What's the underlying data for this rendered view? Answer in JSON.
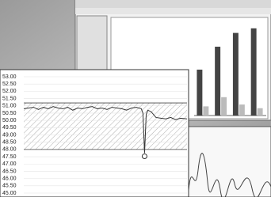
{
  "chart_data": [
    {
      "type": "line",
      "x": [
        0,
        3,
        6,
        9,
        12,
        15,
        18,
        21,
        24,
        27,
        30,
        33,
        36,
        39,
        42,
        45,
        48,
        51,
        54,
        57,
        60,
        63,
        66,
        69,
        72,
        73,
        74,
        75,
        76,
        78,
        81,
        84,
        87,
        90,
        93,
        96,
        100
      ],
      "values": [
        50.8,
        50.85,
        50.9,
        50.75,
        50.9,
        50.8,
        50.95,
        50.85,
        50.8,
        50.9,
        50.7,
        50.85,
        50.8,
        50.9,
        50.95,
        50.8,
        50.85,
        50.75,
        50.9,
        50.85,
        50.8,
        50.7,
        50.85,
        50.9,
        50.8,
        50.5,
        47.75,
        50.4,
        50.7,
        50.6,
        50.2,
        50.15,
        50.1,
        50.2,
        50.05,
        50.15,
        50.1
      ],
      "color": "#333333",
      "xlim": [
        0,
        100
      ],
      "ylim": [
        45,
        53
      ],
      "yticks": [
        {
          "value": 45,
          "label": "45.00"
        },
        {
          "value": 45.5,
          "label": "45.50"
        },
        {
          "value": 46,
          "label": "46.00"
        },
        {
          "value": 46.5,
          "label": "46.50"
        },
        {
          "value": 47,
          "label": "47.00"
        },
        {
          "value": 47.5,
          "label": "47.50"
        },
        {
          "value": 48,
          "label": "48.00"
        },
        {
          "value": 48.5,
          "label": "48.50"
        },
        {
          "value": 49,
          "label": "49.00"
        },
        {
          "value": 49.5,
          "label": "49.50"
        },
        {
          "value": 50,
          "label": "50.00"
        },
        {
          "value": 50.5,
          "label": "50.50"
        },
        {
          "value": 51,
          "label": "51.00"
        },
        {
          "value": 51.5,
          "label": "51.50"
        },
        {
          "value": 52,
          "label": "52.00"
        },
        {
          "value": 52.5,
          "label": "52.50"
        },
        {
          "value": 53,
          "label": "53.00"
        }
      ],
      "upper_limit": 51.2,
      "lower_limit": 48.0,
      "grid": true
    },
    {
      "type": "bar",
      "categories": [
        null,
        null,
        null,
        null
      ],
      "series": [
        {
          "color": "#444444",
          "values": [
            50,
            75,
            90,
            95
          ]
        },
        {
          "color": "#bbbbbb",
          "values": [
            10,
            20,
            12,
            8
          ]
        }
      ],
      "ylim": [
        0,
        100
      ]
    }
  ]
}
